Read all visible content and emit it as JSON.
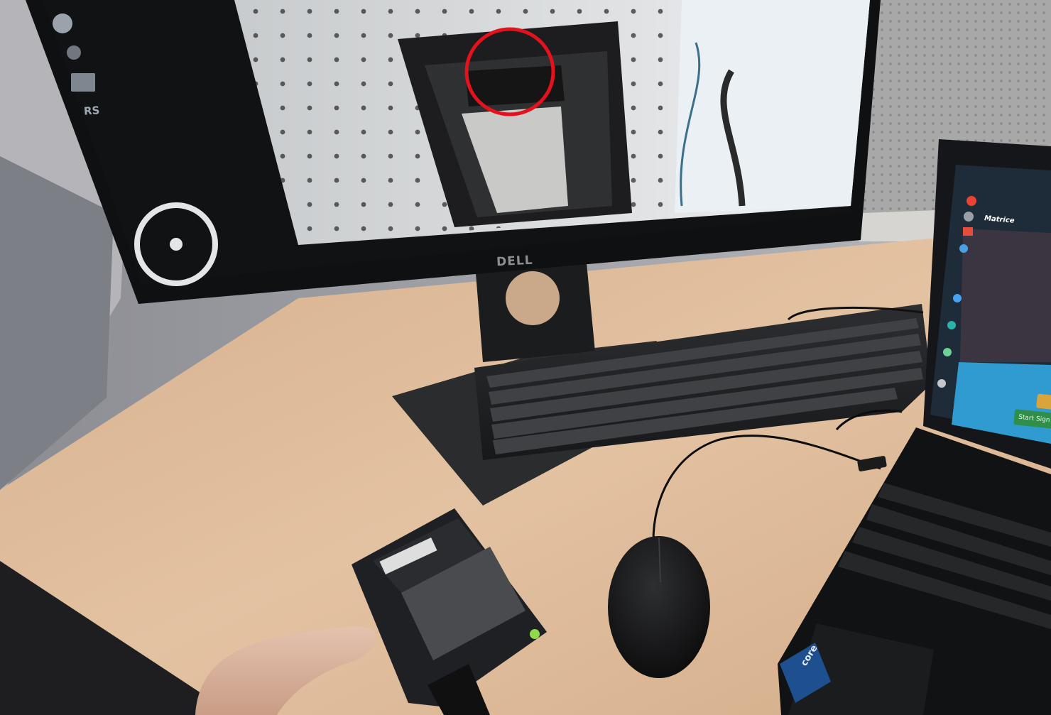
{
  "scene": {
    "monitor": {
      "brand_text": "DELL",
      "screen_sidebar": {
        "badge_text": "RS"
      }
    },
    "laptop": {
      "app_title": "Matrice",
      "button_label": "Start Sign",
      "sticker_text": "core"
    },
    "annotation": {
      "shape": "circle",
      "color": "#e3121c"
    }
  }
}
